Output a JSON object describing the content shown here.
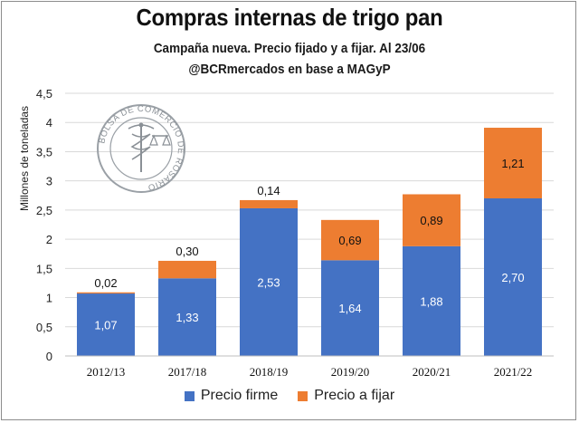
{
  "title": "Compras internas de trigo pan",
  "subtitle_line1": "Campaña nueva. Precio fijado y a fijar. Al 23/06",
  "subtitle_line2": "@BCRmercados en base a MAGyP",
  "watermark_text": "BOLSA DE COMERCIO DE ROSARIO",
  "colors": {
    "firme": "#4472c4",
    "a_fijar": "#ed7d31",
    "grid": "#d9d9d9",
    "axis": "#bfbfbf"
  },
  "chart_data": {
    "type": "bar",
    "stacked": true,
    "ylabel": "Millones de toneladas",
    "xlabel": "",
    "ylim": [
      0,
      4.5
    ],
    "yticks": [
      "0",
      "0,5",
      "1",
      "1,5",
      "2",
      "2,5",
      "3",
      "3,5",
      "4",
      "4,5"
    ],
    "ytick_values": [
      0,
      0.5,
      1,
      1.5,
      2,
      2.5,
      3,
      3.5,
      4,
      4.5
    ],
    "categories": [
      "2012/13",
      "2017/18",
      "2018/19",
      "2019/20",
      "2020/21",
      "2021/22"
    ],
    "series": [
      {
        "name": "Precio firme",
        "values": [
          1.07,
          1.33,
          2.53,
          1.64,
          1.88,
          2.7
        ],
        "labels": [
          "1,07",
          "1,33",
          "2,53",
          "1,64",
          "1,88",
          "2,70"
        ]
      },
      {
        "name": "Precio a fijar",
        "values": [
          0.02,
          0.3,
          0.14,
          0.69,
          0.89,
          1.21
        ],
        "labels": [
          "0,02",
          "0,30",
          "0,14",
          "0,69",
          "0,89",
          "1,21"
        ]
      }
    ],
    "legend": [
      "Precio firme",
      "Precio a fijar"
    ],
    "legend_position": "bottom",
    "grid": true
  }
}
